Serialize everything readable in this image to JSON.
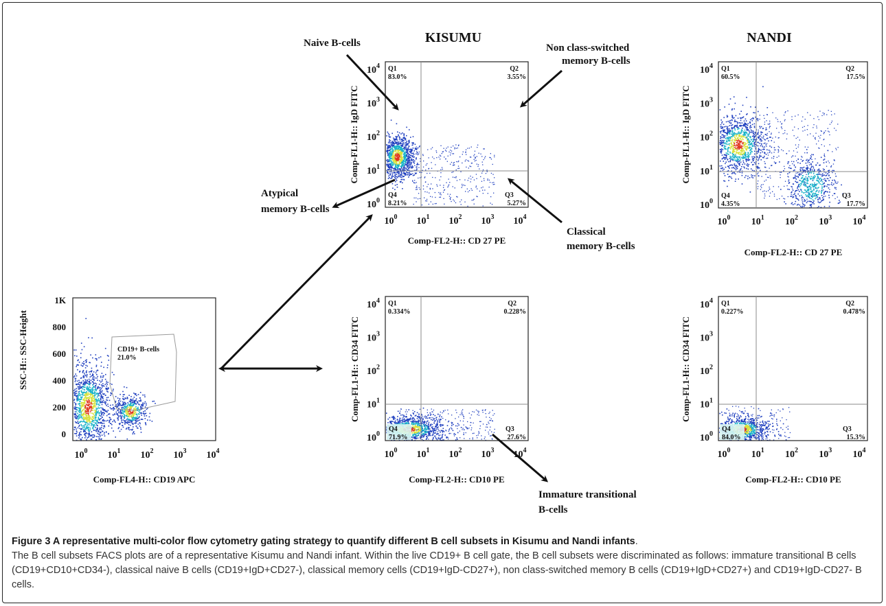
{
  "columns": {
    "left": "KISUMU",
    "right": "NANDI"
  },
  "panels": {
    "gate": {
      "xlabel": "Comp-FL4-H:: CD19 APC",
      "ylabel": "SSC-H:: SSC-Height",
      "y_ticks": [
        "1K",
        "800",
        "600",
        "400",
        "200",
        "0"
      ],
      "gate_label": "CD19+ B-cells",
      "gate_value": "21.0%"
    },
    "kisumu_igd": {
      "xlabel": "Comp-FL2-H:: CD 27 PE",
      "ylabel": "Comp-FL1-H:: IgD FITC",
      "q1": "Q1",
      "q1_value": "83.0%",
      "q2": "Q2",
      "q2_value": "3.55%",
      "q3": "Q3",
      "q3_value": "5.27%",
      "q4": "Q4",
      "q4_value": "8.21%"
    },
    "nandi_igd": {
      "xlabel": "Comp-FL2-H:: CD 27 PE",
      "ylabel": "Comp-FL1-H:: IgD FITC",
      "q1": "Q1",
      "q1_value": "60.5%",
      "q2": "Q2",
      "q2_value": "17.5%",
      "q3": "Q3",
      "q3_value": "17.7%",
      "q4": "Q4",
      "q4_value": "4.35%"
    },
    "kisumu_cd34": {
      "xlabel": "Comp-FL2-H:: CD10 PE",
      "ylabel": "Comp-FL1-H:: CD34 FITC",
      "q1": "Q1",
      "q1_value": "0.334%",
      "q2": "Q2",
      "q2_value": "0.228%",
      "q3": "Q3",
      "q3_value": "27.6%",
      "q4": "Q4",
      "q4_value": "71.9%"
    },
    "nandi_cd34": {
      "xlabel": "Comp-FL2-H:: CD10 PE",
      "ylabel": "Comp-FL1-H:: CD34 FITC",
      "q1": "Q1",
      "q1_value": "0.227%",
      "q2": "Q2",
      "q2_value": "0.478%",
      "q3": "Q3",
      "q3_value": "15.3%",
      "q4": "Q4",
      "q4_value": "84.0%"
    }
  },
  "log_ticks": {
    "base": "10",
    "exponents": [
      "0",
      "1",
      "2",
      "3",
      "4"
    ]
  },
  "annotations": {
    "naive": "Naive B-cells",
    "nonclass_1": "Non class-switched",
    "nonclass_2": "memory B-cells",
    "atypical_1": "Atypical",
    "atypical_2": "memory B-cells",
    "classical_1": "Classical",
    "classical_2": "memory B-cells",
    "immature_1": "Immature transitional",
    "immature_2": "B-cells"
  },
  "caption": {
    "title": "Figure 3 A representative multi-color flow cytometry gating strategy to quantify different B cell subsets in Kisumu and Nandi infants",
    "title_end": ".",
    "body": "The B cell subsets FACS plots are of a representative Kisumu and Nandi infant. Within the live CD19+ B cell gate, the B cell subsets were discriminated as follows: immature transitional B cells (CD19+CD10+CD34-), classical naive B cells (CD19+IgD+CD27-), classical memory cells (CD19+IgD-CD27+), non class-switched memory B cells (CD19+IgD+CD27+) and CD19+IgD-CD27- B cells."
  },
  "colors": {
    "dot_low": "#1f3fbf",
    "dot_mid": "#19b3c9",
    "dot_high": "#d8e23a",
    "dot_peak": "#e0361f"
  }
}
